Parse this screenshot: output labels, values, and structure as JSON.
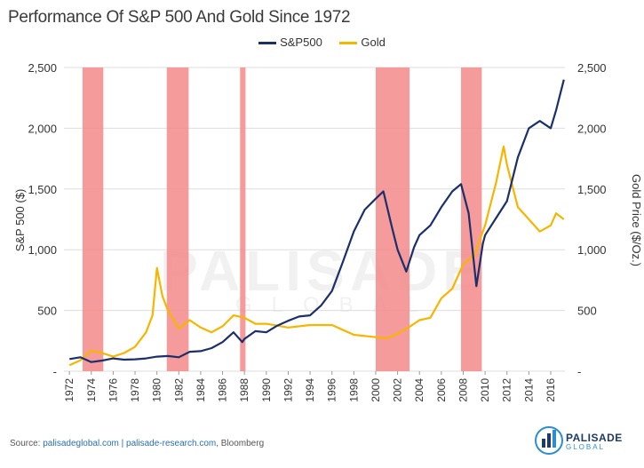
{
  "header": {
    "title": "Performance Of S&P 500 And Gold Since 1972"
  },
  "footer": {
    "source_label": "Source:",
    "source_link1": "palisadeglobal.com",
    "separator": "|",
    "source_link2": "palisade-research.com",
    "source_tail": ", Bloomberg"
  },
  "brand": {
    "name": "PALISADE",
    "sub": "GLOBAL"
  },
  "watermark": {
    "name": "PALISADE",
    "sub": "GLOBAL"
  },
  "colors": {
    "sp500": "#1b2f6b",
    "gold": "#f7b500",
    "recession": "#f58a8a",
    "grid": "#dddddd"
  },
  "chart_data": {
    "type": "line",
    "title": "Performance Of S&P 500 And Gold Since 1972",
    "ylabel": "S&P 500 ($)",
    "y2label": "Gold Price ($/Oz.)",
    "xlim": [
      1971.5,
      2017.3
    ],
    "ylim": [
      0,
      2500
    ],
    "y2lim": [
      0,
      2500
    ],
    "y_ticks": [
      "-",
      "500",
      "1,000",
      "1,500",
      "2,000",
      "2,500"
    ],
    "y2_ticks": [
      "-",
      "500",
      "1,000",
      "1,500",
      "2,000",
      "2,500"
    ],
    "x_ticks": [
      "1972",
      "1974",
      "1976",
      "1978",
      "1980",
      "1982",
      "1984",
      "1986",
      "1988",
      "1990",
      "1992",
      "1994",
      "1996",
      "1998",
      "2000",
      "2002",
      "2004",
      "2006",
      "2008",
      "2010",
      "2012",
      "2014",
      "2016"
    ],
    "grid": true,
    "legend": "top-center",
    "recessions": [
      [
        1973.2,
        1975.1
      ],
      [
        1980.9,
        1982.9
      ],
      [
        1987.6,
        1988.1
      ],
      [
        2000.0,
        2003.1
      ],
      [
        2007.8,
        2009.7
      ]
    ],
    "series": [
      {
        "name": "S&P500",
        "axis": "left",
        "x": [
          1972,
          1973,
          1974,
          1975,
          1976,
          1977,
          1978,
          1979,
          1980,
          1981,
          1982,
          1983,
          1984,
          1985,
          1986,
          1987,
          1987.8,
          1988,
          1989,
          1990,
          1991,
          1992,
          1993,
          1994,
          1995,
          1996,
          1997,
          1998,
          1999,
          2000,
          2000.7,
          2001.5,
          2002,
          2002.8,
          2003.5,
          2004,
          2005,
          2006,
          2007,
          2007.8,
          2008.5,
          2009.2,
          2009.8,
          2010,
          2011,
          2012,
          2013,
          2014,
          2015,
          2016,
          2016.5,
          2017.2
        ],
        "values": [
          100,
          115,
          75,
          88,
          105,
          95,
          98,
          105,
          120,
          125,
          115,
          160,
          165,
          190,
          240,
          320,
          240,
          265,
          330,
          320,
          375,
          415,
          450,
          460,
          540,
          660,
          900,
          1150,
          1330,
          1420,
          1480,
          1180,
          1000,
          820,
          1020,
          1120,
          1200,
          1350,
          1480,
          1540,
          1300,
          700,
          1050,
          1120,
          1260,
          1400,
          1760,
          2000,
          2060,
          2000,
          2150,
          2400
        ]
      },
      {
        "name": "Gold",
        "axis": "right",
        "x": [
          1972,
          1973,
          1974,
          1975,
          1976,
          1977,
          1978,
          1979,
          1979.6,
          1980,
          1980.5,
          1981,
          1982,
          1983,
          1984,
          1985,
          1986,
          1987,
          1988,
          1989,
          1990,
          1992,
          1994,
          1996,
          1998,
          2000,
          2001,
          2002,
          2003,
          2004,
          2005,
          2006,
          2007,
          2008,
          2009,
          2010,
          2011,
          2011.7,
          2012,
          2013,
          2014,
          2015,
          2016,
          2016.5,
          2017.2
        ],
        "values": [
          50,
          90,
          170,
          150,
          120,
          150,
          200,
          320,
          460,
          850,
          620,
          500,
          350,
          420,
          360,
          320,
          370,
          460,
          440,
          390,
          390,
          360,
          380,
          380,
          300,
          280,
          270,
          310,
          360,
          420,
          440,
          600,
          680,
          880,
          950,
          1200,
          1550,
          1850,
          1700,
          1350,
          1250,
          1150,
          1200,
          1300,
          1250
        ]
      }
    ]
  }
}
